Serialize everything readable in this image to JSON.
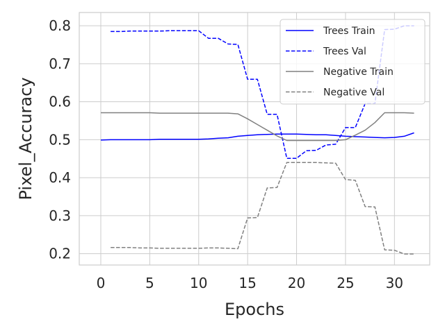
{
  "chart_data": {
    "type": "line",
    "title": "",
    "xlabel": "Epochs",
    "ylabel": "Pixel_Accuracy",
    "xlim": [
      -2.2,
      33.6
    ],
    "ylim": [
      0.17,
      0.835
    ],
    "xticks": [
      0,
      5,
      10,
      15,
      20,
      25,
      30
    ],
    "yticks": [
      0.2,
      0.3,
      0.4,
      0.5,
      0.6,
      0.7,
      0.8
    ],
    "xtick_labels": [
      "0",
      "5",
      "10",
      "15",
      "20",
      "25",
      "30"
    ],
    "ytick_labels": [
      "0.2",
      "0.3",
      "0.4",
      "0.5",
      "0.6",
      "0.7",
      "0.8"
    ],
    "grid": true,
    "legend_position": "top-right",
    "series": [
      {
        "name": "Trees Train",
        "color": "#0000ff",
        "dash": "solid",
        "x": [
          0,
          1,
          2,
          3,
          4,
          5,
          6,
          7,
          8,
          9,
          10,
          11,
          12,
          13,
          14,
          15,
          16,
          17,
          18,
          19,
          20,
          21,
          22,
          23,
          24,
          25,
          26,
          27,
          28,
          29,
          30,
          31,
          32
        ],
        "y": [
          0.499,
          0.5,
          0.5,
          0.5,
          0.5,
          0.5,
          0.501,
          0.501,
          0.501,
          0.501,
          0.501,
          0.502,
          0.504,
          0.505,
          0.509,
          0.511,
          0.513,
          0.514,
          0.515,
          0.515,
          0.515,
          0.514,
          0.513,
          0.513,
          0.511,
          0.509,
          0.508,
          0.507,
          0.506,
          0.505,
          0.506,
          0.509,
          0.518
        ]
      },
      {
        "name": "Trees Val",
        "color": "#0000ff",
        "dash": "dashed",
        "x": [
          1,
          2,
          3,
          4,
          5,
          6,
          7,
          8,
          9,
          10,
          11,
          12,
          13,
          14,
          15,
          16,
          17,
          18,
          19,
          20,
          21,
          22,
          23,
          24,
          25,
          26,
          27,
          28,
          29,
          30,
          31,
          32
        ],
        "y": [
          0.785,
          0.785,
          0.786,
          0.786,
          0.786,
          0.786,
          0.787,
          0.787,
          0.787,
          0.787,
          0.767,
          0.767,
          0.752,
          0.751,
          0.659,
          0.659,
          0.567,
          0.567,
          0.451,
          0.451,
          0.471,
          0.472,
          0.486,
          0.488,
          0.532,
          0.532,
          0.595,
          0.595,
          0.79,
          0.791,
          0.8,
          0.8
        ]
      },
      {
        "name": "Negative Train",
        "color": "#808080",
        "dash": "solid",
        "x": [
          0,
          1,
          2,
          3,
          4,
          5,
          6,
          7,
          8,
          9,
          10,
          11,
          12,
          13,
          14,
          15,
          16,
          17,
          18,
          19,
          20,
          21,
          22,
          23,
          24,
          25,
          26,
          27,
          28,
          29,
          30,
          31,
          32
        ],
        "y": [
          0.571,
          0.571,
          0.571,
          0.571,
          0.571,
          0.571,
          0.57,
          0.57,
          0.57,
          0.57,
          0.57,
          0.57,
          0.57,
          0.57,
          0.568,
          0.555,
          0.54,
          0.525,
          0.51,
          0.498,
          0.498,
          0.498,
          0.498,
          0.498,
          0.498,
          0.5,
          0.512,
          0.525,
          0.545,
          0.571,
          0.571,
          0.571,
          0.57
        ]
      },
      {
        "name": "Negative Val",
        "color": "#808080",
        "dash": "dashed",
        "x": [
          1,
          2,
          3,
          4,
          5,
          6,
          7,
          8,
          9,
          10,
          11,
          12,
          13,
          14,
          15,
          16,
          17,
          18,
          19,
          20,
          21,
          22,
          23,
          24,
          25,
          26,
          27,
          28,
          29,
          30,
          31,
          32
        ],
        "y": [
          0.216,
          0.216,
          0.216,
          0.215,
          0.215,
          0.214,
          0.214,
          0.214,
          0.214,
          0.214,
          0.215,
          0.215,
          0.214,
          0.213,
          0.294,
          0.295,
          0.373,
          0.374,
          0.44,
          0.44,
          0.44,
          0.44,
          0.439,
          0.438,
          0.395,
          0.393,
          0.324,
          0.323,
          0.21,
          0.209,
          0.199,
          0.199
        ]
      }
    ]
  }
}
